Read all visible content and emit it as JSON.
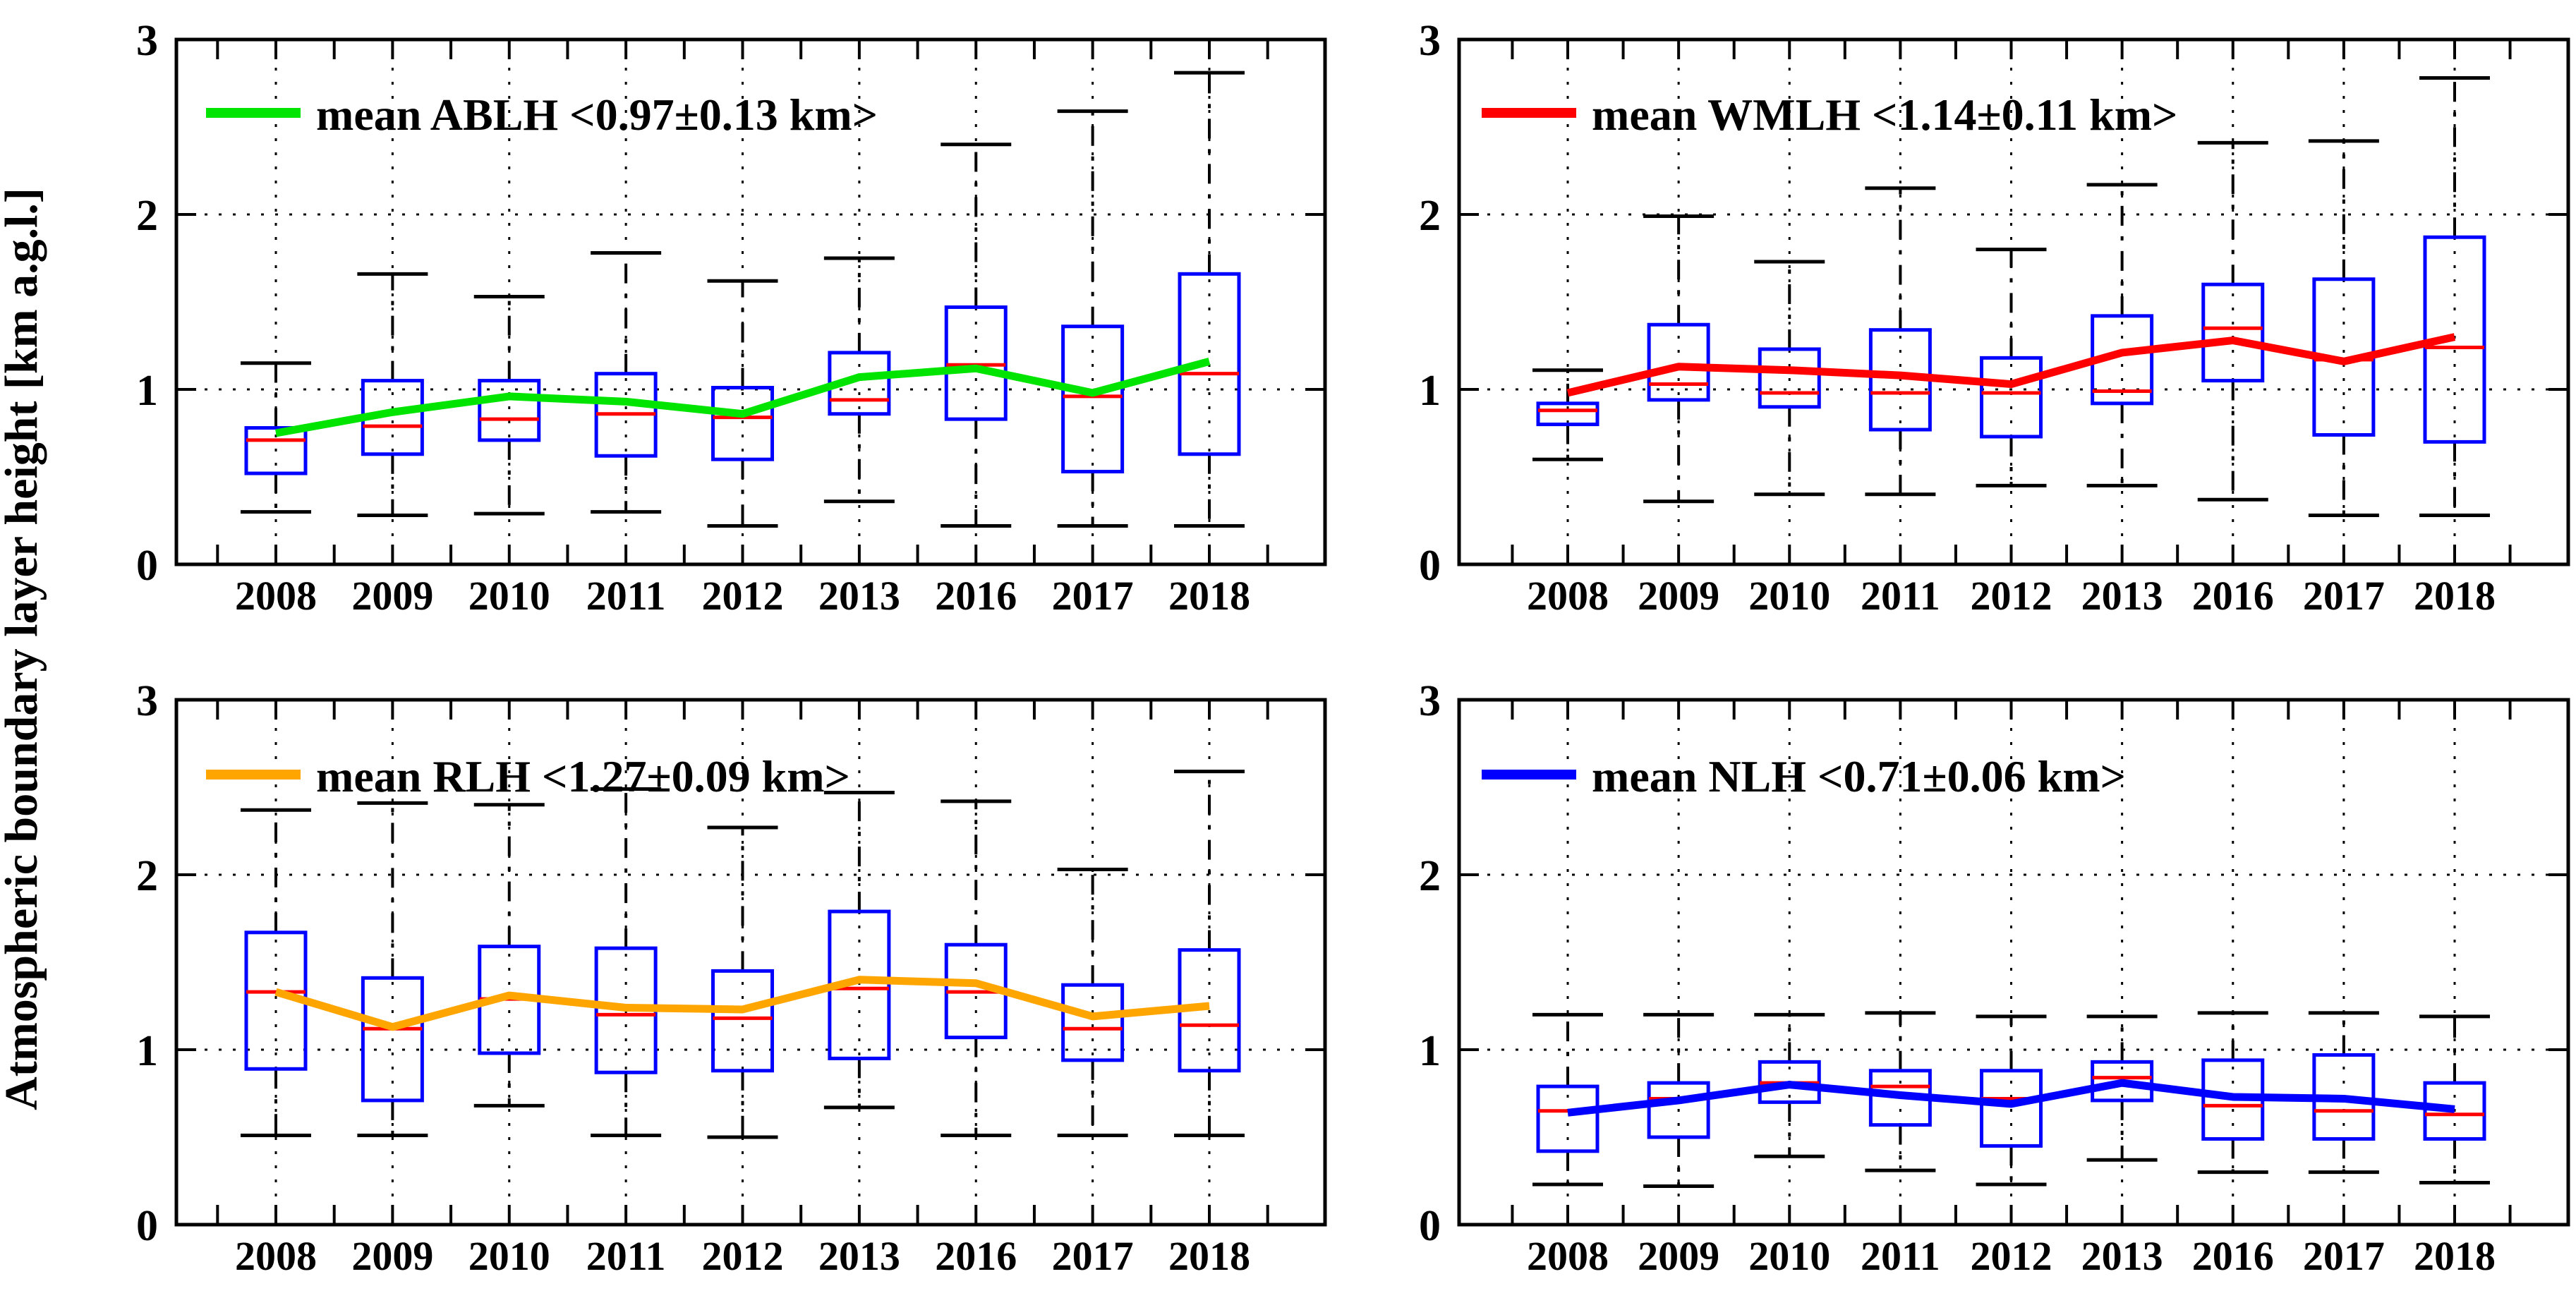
{
  "figure": {
    "y_axis_label": "Atmospheric boundary layer height [km a.g.l.]",
    "background_color": "#ffffff",
    "axis_color": "#000000",
    "box_color": "#0000ff",
    "median_color": "#ff0000",
    "whisker_color": "#000000",
    "y_ticks": [
      "0",
      "1",
      "2",
      "3"
    ],
    "ylim": [
      0,
      3
    ],
    "grid": "dotted horizontal at 1,2 and vertical at each year"
  },
  "chart_data": [
    {
      "type": "boxplot-with-mean-line",
      "panel": "top-left",
      "series_name": "mean ABLH",
      "legend_label": "mean ABLH <0.97±0.13 km>",
      "mean_summary_km": "0.97±0.13",
      "line_color": "#00e400",
      "ylim": [
        0,
        3
      ],
      "categories": [
        "2008",
        "2009",
        "2010",
        "2011",
        "2012",
        "2013",
        "2016",
        "2017",
        "2018"
      ],
      "boxes": [
        {
          "year": "2008",
          "whisker_low": 0.3,
          "q1": 0.52,
          "median": 0.71,
          "q3": 0.78,
          "whisker_high": 1.15,
          "mean": 0.75
        },
        {
          "year": "2009",
          "whisker_low": 0.28,
          "q1": 0.63,
          "median": 0.79,
          "q3": 1.05,
          "whisker_high": 1.66,
          "mean": 0.87
        },
        {
          "year": "2010",
          "whisker_low": 0.29,
          "q1": 0.71,
          "median": 0.83,
          "q3": 1.05,
          "whisker_high": 1.53,
          "mean": 0.96
        },
        {
          "year": "2011",
          "whisker_low": 0.3,
          "q1": 0.62,
          "median": 0.86,
          "q3": 1.09,
          "whisker_high": 1.78,
          "mean": 0.93
        },
        {
          "year": "2012",
          "whisker_low": 0.22,
          "q1": 0.6,
          "median": 0.84,
          "q3": 1.01,
          "whisker_high": 1.62,
          "mean": 0.86
        },
        {
          "year": "2013",
          "whisker_low": 0.36,
          "q1": 0.86,
          "median": 0.94,
          "q3": 1.21,
          "whisker_high": 1.75,
          "mean": 1.07
        },
        {
          "year": "2016",
          "whisker_low": 0.22,
          "q1": 0.83,
          "median": 1.14,
          "q3": 1.47,
          "whisker_high": 2.4,
          "mean": 1.12
        },
        {
          "year": "2017",
          "whisker_low": 0.22,
          "q1": 0.53,
          "median": 0.96,
          "q3": 1.36,
          "whisker_high": 2.59,
          "mean": 0.98
        },
        {
          "year": "2018",
          "whisker_low": 0.22,
          "q1": 0.63,
          "median": 1.09,
          "q3": 1.66,
          "whisker_high": 2.81,
          "mean": 1.16
        }
      ]
    },
    {
      "type": "boxplot-with-mean-line",
      "panel": "top-right",
      "series_name": "mean WMLH",
      "legend_label": "mean WMLH  <1.14±0.11 km>",
      "mean_summary_km": "1.14±0.11",
      "line_color": "#ff0000",
      "ylim": [
        0,
        3
      ],
      "categories": [
        "2008",
        "2009",
        "2010",
        "2011",
        "2012",
        "2013",
        "2016",
        "2017",
        "2018"
      ],
      "boxes": [
        {
          "year": "2008",
          "whisker_low": 0.6,
          "q1": 0.8,
          "median": 0.88,
          "q3": 0.92,
          "whisker_high": 1.11,
          "mean": 0.98
        },
        {
          "year": "2009",
          "whisker_low": 0.36,
          "q1": 0.94,
          "median": 1.03,
          "q3": 1.37,
          "whisker_high": 1.99,
          "mean": 1.13
        },
        {
          "year": "2010",
          "whisker_low": 0.4,
          "q1": 0.9,
          "median": 0.98,
          "q3": 1.23,
          "whisker_high": 1.73,
          "mean": 1.11
        },
        {
          "year": "2011",
          "whisker_low": 0.4,
          "q1": 0.77,
          "median": 0.98,
          "q3": 1.34,
          "whisker_high": 2.15,
          "mean": 1.08
        },
        {
          "year": "2012",
          "whisker_low": 0.45,
          "q1": 0.73,
          "median": 0.98,
          "q3": 1.18,
          "whisker_high": 1.8,
          "mean": 1.03
        },
        {
          "year": "2013",
          "whisker_low": 0.45,
          "q1": 0.92,
          "median": 0.99,
          "q3": 1.42,
          "whisker_high": 2.17,
          "mean": 1.21
        },
        {
          "year": "2016",
          "whisker_low": 0.37,
          "q1": 1.05,
          "median": 1.35,
          "q3": 1.6,
          "whisker_high": 2.41,
          "mean": 1.28
        },
        {
          "year": "2017",
          "whisker_low": 0.28,
          "q1": 0.74,
          "median": 1.17,
          "q3": 1.63,
          "whisker_high": 2.42,
          "mean": 1.16
        },
        {
          "year": "2018",
          "whisker_low": 0.28,
          "q1": 0.7,
          "median": 1.24,
          "q3": 1.87,
          "whisker_high": 2.78,
          "mean": 1.3
        }
      ]
    },
    {
      "type": "boxplot-with-mean-line",
      "panel": "bottom-left",
      "series_name": "mean RLH",
      "legend_label": "mean RLH  <1.27±0.09 km>",
      "mean_summary_km": "1.27±0.09",
      "line_color": "#ffa500",
      "ylim": [
        0,
        3
      ],
      "categories": [
        "2008",
        "2009",
        "2010",
        "2011",
        "2012",
        "2013",
        "2016",
        "2017",
        "2018"
      ],
      "boxes": [
        {
          "year": "2008",
          "whisker_low": 0.51,
          "q1": 0.89,
          "median": 1.33,
          "q3": 1.67,
          "whisker_high": 2.37,
          "mean": 1.33
        },
        {
          "year": "2009",
          "whisker_low": 0.51,
          "q1": 0.71,
          "median": 1.12,
          "q3": 1.41,
          "whisker_high": 2.41,
          "mean": 1.13
        },
        {
          "year": "2010",
          "whisker_low": 0.68,
          "q1": 0.98,
          "median": 1.29,
          "q3": 1.59,
          "whisker_high": 2.4,
          "mean": 1.31
        },
        {
          "year": "2011",
          "whisker_low": 0.51,
          "q1": 0.87,
          "median": 1.2,
          "q3": 1.58,
          "whisker_high": 2.49,
          "mean": 1.24
        },
        {
          "year": "2012",
          "whisker_low": 0.5,
          "q1": 0.88,
          "median": 1.18,
          "q3": 1.45,
          "whisker_high": 2.27,
          "mean": 1.23
        },
        {
          "year": "2013",
          "whisker_low": 0.67,
          "q1": 0.95,
          "median": 1.35,
          "q3": 1.79,
          "whisker_high": 2.47,
          "mean": 1.4
        },
        {
          "year": "2016",
          "whisker_low": 0.51,
          "q1": 1.07,
          "median": 1.33,
          "q3": 1.6,
          "whisker_high": 2.42,
          "mean": 1.38
        },
        {
          "year": "2017",
          "whisker_low": 0.51,
          "q1": 0.94,
          "median": 1.12,
          "q3": 1.37,
          "whisker_high": 2.03,
          "mean": 1.19
        },
        {
          "year": "2018",
          "whisker_low": 0.51,
          "q1": 0.88,
          "median": 1.14,
          "q3": 1.57,
          "whisker_high": 2.59,
          "mean": 1.25
        }
      ]
    },
    {
      "type": "boxplot-with-mean-line",
      "panel": "bottom-right",
      "series_name": "mean NLH",
      "legend_label": "mean NLH  <0.71±0.06 km>",
      "mean_summary_km": "0.71±0.06",
      "line_color": "#0000ff",
      "ylim": [
        0,
        3
      ],
      "categories": [
        "2008",
        "2009",
        "2010",
        "2011",
        "2012",
        "2013",
        "2016",
        "2017",
        "2018"
      ],
      "boxes": [
        {
          "year": "2008",
          "whisker_low": 0.23,
          "q1": 0.42,
          "median": 0.65,
          "q3": 0.79,
          "whisker_high": 1.2,
          "mean": 0.64
        },
        {
          "year": "2009",
          "whisker_low": 0.22,
          "q1": 0.5,
          "median": 0.72,
          "q3": 0.81,
          "whisker_high": 1.2,
          "mean": 0.71
        },
        {
          "year": "2010",
          "whisker_low": 0.39,
          "q1": 0.7,
          "median": 0.81,
          "q3": 0.93,
          "whisker_high": 1.2,
          "mean": 0.8
        },
        {
          "year": "2011",
          "whisker_low": 0.31,
          "q1": 0.57,
          "median": 0.79,
          "q3": 0.88,
          "whisker_high": 1.21,
          "mean": 0.74
        },
        {
          "year": "2012",
          "whisker_low": 0.23,
          "q1": 0.45,
          "median": 0.72,
          "q3": 0.88,
          "whisker_high": 1.19,
          "mean": 0.69
        },
        {
          "year": "2013",
          "whisker_low": 0.37,
          "q1": 0.71,
          "median": 0.84,
          "q3": 0.93,
          "whisker_high": 1.19,
          "mean": 0.81
        },
        {
          "year": "2016",
          "whisker_low": 0.3,
          "q1": 0.49,
          "median": 0.68,
          "q3": 0.94,
          "whisker_high": 1.21,
          "mean": 0.73
        },
        {
          "year": "2017",
          "whisker_low": 0.3,
          "q1": 0.49,
          "median": 0.65,
          "q3": 0.97,
          "whisker_high": 1.21,
          "mean": 0.72
        },
        {
          "year": "2018",
          "whisker_low": 0.24,
          "q1": 0.49,
          "median": 0.63,
          "q3": 0.81,
          "whisker_high": 1.19,
          "mean": 0.66
        }
      ]
    }
  ]
}
